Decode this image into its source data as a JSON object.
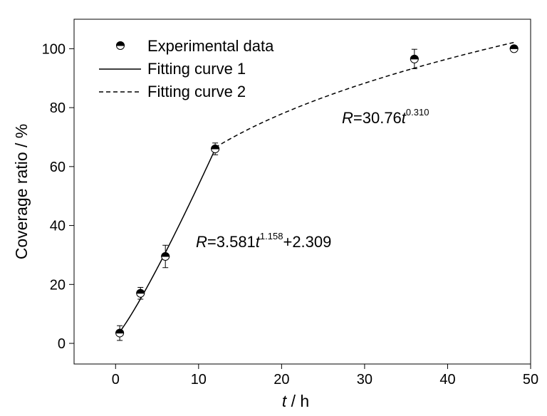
{
  "chart_data": {
    "type": "scatter",
    "xlabel": {
      "var": "t",
      "unit": " / h"
    },
    "ylabel": "Coverage ratio / %",
    "xlim": [
      -5,
      50
    ],
    "ylim": [
      -7,
      110
    ],
    "x_ticks": [
      0,
      10,
      20,
      30,
      40,
      50
    ],
    "y_ticks": [
      0,
      20,
      40,
      60,
      80,
      100
    ],
    "grid": false,
    "legend_position": "top-left",
    "series": [
      {
        "name": "Experimental data",
        "kind": "points",
        "marker": "half-filled-circle",
        "points": [
          {
            "x": 0.5,
            "y": 3.5,
            "err": 2.5
          },
          {
            "x": 3,
            "y": 17,
            "err": 2.0
          },
          {
            "x": 6,
            "y": 29.5,
            "err": 3.8
          },
          {
            "x": 12,
            "y": 66,
            "err": 2.0
          },
          {
            "x": 36,
            "y": 96.5,
            "err": 3.3
          },
          {
            "x": 48,
            "y": 100,
            "err": 1.0
          }
        ]
      },
      {
        "name": "Fitting curve 1",
        "kind": "curve",
        "dash": "solid",
        "model": {
          "a": 3.581,
          "b": 1.158,
          "c": 2.309
        },
        "x_range": [
          0.5,
          12
        ]
      },
      {
        "name": "Fitting curve 2",
        "kind": "curve",
        "dash": "dashed",
        "model": {
          "a": 30.76,
          "b": 0.31,
          "c": 0
        },
        "x_range": [
          12,
          48
        ]
      }
    ],
    "annotations": [
      {
        "id": "eq1",
        "var": "R",
        "prefix": "=3.581",
        "base": "t",
        "exponent": "1.158",
        "suffix": "+2.309",
        "at": [
          14.5,
          35
        ]
      },
      {
        "id": "eq2",
        "var": "R",
        "prefix": "=30.76",
        "base": "t",
        "exponent": "0.310",
        "suffix": "",
        "at": [
          27.5,
          75
        ]
      }
    ]
  }
}
